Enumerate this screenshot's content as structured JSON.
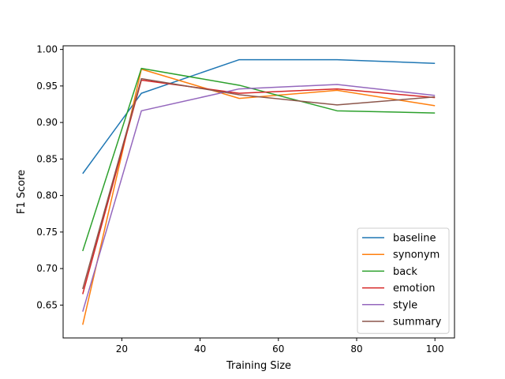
{
  "chart_data": {
    "type": "line",
    "title": "",
    "xlabel": "Training Size",
    "ylabel": "F1 Score",
    "x": [
      10,
      25,
      50,
      75,
      100
    ],
    "xlim": [
      5,
      105
    ],
    "ylim": [
      0.605,
      1.005
    ],
    "xticks": [
      20,
      40,
      60,
      80,
      100
    ],
    "yticks": [
      0.65,
      0.7,
      0.75,
      0.8,
      0.85,
      0.9,
      0.95,
      1.0
    ],
    "ytick_labels": [
      "0.65",
      "0.70",
      "0.75",
      "0.80",
      "0.85",
      "0.90",
      "0.95",
      "1.00"
    ],
    "grid": false,
    "legend_position": "lower-right",
    "series": [
      {
        "name": "baseline",
        "color": "#1f77b4",
        "values": [
          0.83,
          0.94,
          0.986,
          0.986,
          0.981
        ]
      },
      {
        "name": "synonym",
        "color": "#ff7f0e",
        "values": [
          0.623,
          0.973,
          0.933,
          0.944,
          0.923
        ]
      },
      {
        "name": "back",
        "color": "#2ca02c",
        "values": [
          0.724,
          0.974,
          0.951,
          0.916,
          0.913
        ]
      },
      {
        "name": "emotion",
        "color": "#d62728",
        "values": [
          0.665,
          0.958,
          0.94,
          0.946,
          0.934
        ]
      },
      {
        "name": "style",
        "color": "#9467bd",
        "values": [
          0.641,
          0.916,
          0.946,
          0.952,
          0.937
        ]
      },
      {
        "name": "summary",
        "color": "#8c564b",
        "values": [
          0.672,
          0.96,
          0.938,
          0.924,
          0.935
        ]
      }
    ]
  }
}
